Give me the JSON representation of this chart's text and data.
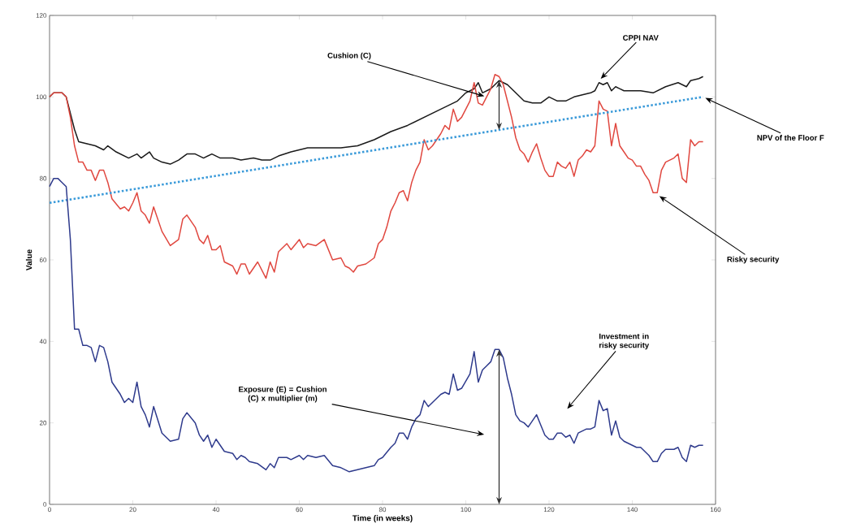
{
  "chart_data": {
    "type": "line",
    "xlabel": "Time (in weeks)",
    "ylabel": "Value",
    "xlim": [
      0,
      160
    ],
    "ylim": [
      0,
      120
    ],
    "xticks": [
      0,
      20,
      40,
      60,
      80,
      100,
      120,
      140,
      160
    ],
    "yticks": [
      0,
      20,
      40,
      60,
      80,
      100,
      120
    ],
    "grid": false,
    "series": [
      {
        "color": "#1a1a1a",
        "line_style": "solid",
        "x": [
          0,
          1,
          3,
          4,
          6,
          7,
          9,
          11,
          13,
          14,
          16,
          19,
          21,
          22,
          24,
          25,
          27,
          29,
          31,
          33,
          35,
          37,
          39,
          41,
          44,
          46,
          49,
          51,
          53,
          55,
          58,
          62,
          66,
          70,
          74,
          78,
          82,
          86,
          90,
          94,
          98,
          100,
          102,
          103,
          104,
          106,
          108,
          110,
          112,
          114,
          116,
          118,
          120,
          122,
          124,
          126,
          128,
          130,
          131,
          132,
          133,
          134,
          135,
          136,
          138,
          142,
          145,
          148,
          151,
          153,
          154,
          156,
          157
        ],
        "values": [
          100,
          101,
          101,
          100,
          92,
          89,
          88.5,
          88,
          87,
          88,
          86.5,
          85,
          86,
          85,
          86.5,
          85,
          84,
          83.5,
          84.5,
          86,
          86,
          85,
          86,
          85,
          85,
          84.5,
          85,
          84.5,
          84.5,
          85.5,
          86.5,
          87.5,
          87.5,
          87.5,
          88,
          89.5,
          91.5,
          93,
          95,
          97,
          99,
          101,
          102,
          103.5,
          101,
          102,
          104,
          103,
          101,
          99,
          98.5,
          98.5,
          100,
          99,
          99,
          100,
          100.5,
          101,
          101.5,
          103.5,
          103,
          103.5,
          101.5,
          102.5,
          101.5,
          101.5,
          101,
          102.5,
          103.5,
          102.5,
          104,
          104.5,
          105
        ]
      },
      {
        "color": "#e0473f",
        "line_style": "solid",
        "x": [
          0,
          1,
          3,
          4,
          5,
          6,
          7,
          8,
          9,
          10,
          11,
          12,
          13,
          14,
          15,
          17,
          18,
          19,
          20,
          21,
          22,
          23,
          24,
          25,
          27,
          29,
          31,
          32,
          33,
          35,
          36,
          37,
          38,
          39,
          40,
          41,
          42,
          44,
          45,
          46,
          47,
          48,
          50,
          52,
          53,
          54,
          55,
          57,
          58,
          60,
          61,
          62,
          64,
          66,
          68,
          70,
          71,
          72,
          73,
          74,
          76,
          78,
          79,
          80,
          81,
          82,
          83,
          84,
          85,
          86,
          87,
          88,
          89,
          90,
          91,
          92,
          94,
          95,
          96,
          97,
          98,
          99,
          101,
          102,
          103,
          104,
          105,
          106,
          107,
          108,
          109,
          110,
          111,
          112,
          113,
          114,
          115,
          116,
          117,
          118,
          119,
          120,
          121,
          122,
          123,
          124,
          125,
          126,
          127,
          128,
          129,
          130,
          131,
          132,
          133,
          134,
          135,
          136,
          137,
          138,
          139,
          140,
          141,
          142,
          143,
          144,
          145,
          146,
          147,
          148,
          149,
          150,
          151,
          152,
          153,
          154,
          155,
          156,
          157
        ],
        "values": [
          100,
          101,
          101,
          100,
          95,
          88,
          84,
          84,
          82,
          82,
          79.5,
          82,
          82,
          79,
          75,
          72.5,
          73,
          72,
          74,
          76.5,
          72,
          71,
          69,
          73,
          67,
          63.5,
          65,
          70,
          71,
          68,
          65,
          64,
          66,
          62.5,
          62.5,
          63.5,
          59.5,
          58.5,
          56.5,
          59,
          59,
          56.5,
          59.5,
          55.5,
          59.5,
          57,
          62,
          64,
          62.5,
          65,
          63,
          64,
          63.5,
          65,
          60,
          60.5,
          58.5,
          58,
          57,
          58.5,
          59,
          60.5,
          64,
          65,
          68,
          72,
          74,
          76.5,
          77,
          74.5,
          79,
          82,
          84,
          89.5,
          87,
          88,
          91,
          93,
          92,
          97,
          94,
          95,
          99,
          103.5,
          98.5,
          98,
          100,
          102,
          105.5,
          105,
          103,
          99,
          95,
          90,
          87,
          86,
          84,
          86.5,
          88.5,
          85,
          82,
          80.5,
          80.5,
          84,
          83,
          82.5,
          84,
          80.5,
          84.5,
          85.5,
          87,
          86.5,
          88,
          99,
          97,
          96.5,
          88,
          93.5,
          88,
          86.5,
          85,
          84.5,
          83,
          83,
          81,
          79.5,
          76.5,
          76.5,
          82,
          84,
          84.5,
          85,
          86,
          80,
          79,
          89.5,
          88,
          89,
          89
        ]
      },
      {
        "color": "#3a9ad9",
        "line_style": "dotted",
        "x": [
          0,
          108,
          157
        ],
        "values": [
          74,
          91.9,
          100
        ]
      },
      {
        "color": "#2e3a8c",
        "line_style": "solid",
        "x": [
          0,
          1,
          2,
          3,
          4,
          5,
          6,
          7,
          8,
          9,
          10,
          11,
          12,
          13,
          14,
          15,
          17,
          18,
          19,
          20,
          21,
          22,
          23,
          24,
          25,
          27,
          29,
          31,
          32,
          33,
          35,
          36,
          37,
          38,
          39,
          40,
          41,
          42,
          44,
          45,
          46,
          47,
          48,
          50,
          52,
          53,
          54,
          55,
          57,
          58,
          60,
          61,
          62,
          64,
          66,
          68,
          70,
          71,
          72,
          74,
          76,
          78,
          79,
          80,
          82,
          83,
          84,
          85,
          86,
          87,
          88,
          89,
          90,
          91,
          92,
          94,
          95,
          96,
          97,
          98,
          99,
          101,
          102,
          103,
          104,
          105,
          106,
          107,
          108,
          109,
          110,
          111,
          112,
          113,
          114,
          115,
          116,
          117,
          118,
          119,
          120,
          121,
          122,
          123,
          124,
          125,
          126,
          127,
          128,
          129,
          130,
          131,
          132,
          133,
          134,
          135,
          136,
          137,
          138,
          139,
          140,
          141,
          142,
          143,
          144,
          145,
          146,
          147,
          148,
          149,
          150,
          151,
          152,
          153,
          154,
          155,
          156,
          157
        ],
        "values": [
          78,
          80,
          80,
          79,
          78,
          65,
          43,
          43,
          39,
          39,
          38.5,
          35,
          39,
          38.5,
          35,
          30,
          27,
          25,
          26,
          25,
          30,
          24,
          22,
          19,
          24,
          17.5,
          15.5,
          16,
          21,
          22.5,
          20,
          17,
          15.5,
          17,
          14,
          16,
          14.5,
          13,
          12.5,
          11,
          12,
          11.5,
          10.5,
          10,
          8.5,
          10,
          9,
          11.5,
          11.5,
          11,
          12,
          11,
          12,
          11.5,
          12,
          9.5,
          9,
          8.5,
          8,
          8.5,
          9,
          9.5,
          11,
          11.5,
          14,
          15,
          17.5,
          17.5,
          16,
          19,
          21,
          22,
          25.5,
          24,
          25,
          27,
          27.5,
          27,
          32,
          28,
          28.5,
          32,
          37.5,
          30,
          33,
          34,
          35,
          38,
          38,
          36,
          31,
          27,
          22,
          20.5,
          20,
          19,
          20.5,
          22,
          19.5,
          17,
          16,
          16,
          17.5,
          17.5,
          16.5,
          17,
          15,
          17.5,
          18,
          18.5,
          18.5,
          19,
          25.5,
          23,
          23.5,
          17,
          20.5,
          16.5,
          15.5,
          15,
          14.5,
          14,
          14,
          13,
          12,
          10.5,
          10.5,
          12.5,
          13.5,
          13.5,
          13.5,
          14,
          11.5,
          10.5,
          14.5,
          14,
          14.5,
          14.5
        ]
      }
    ],
    "annotations": [
      {
        "text": "Cushion (C)",
        "x": 105,
        "y": 100
      },
      {
        "text": "CPPI NAV",
        "x": 132,
        "y": 104
      },
      {
        "text": "NPV of the Floor F",
        "x": 157,
        "y": 100
      },
      {
        "text": "Risky security",
        "x": 146,
        "y": 76
      },
      "Investment in risky security",
      "Exposure (E) = Cushion (C) x multiplier (m)"
    ]
  }
}
